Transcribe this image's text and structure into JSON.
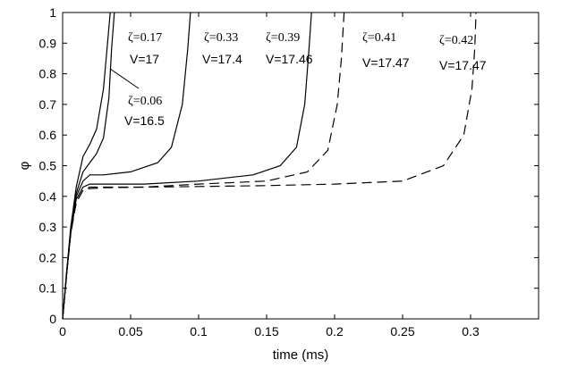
{
  "chart_data": {
    "type": "line",
    "title": "",
    "xlabel": "time (ms)",
    "ylabel": "φ",
    "xlim": [
      0,
      0.35
    ],
    "ylim": [
      0,
      1
    ],
    "xticks": [
      0,
      0.05,
      0.1,
      0.15,
      0.2,
      0.25,
      0.3
    ],
    "xtick_labels": [
      "0",
      "0.05",
      "0.1",
      "0.15",
      "0.2",
      "0.25",
      "0.3"
    ],
    "yticks": [
      0,
      0.1,
      0.2,
      0.3,
      0.4,
      0.5,
      0.6,
      0.7,
      0.8,
      0.9,
      1
    ],
    "ytick_labels": [
      "0",
      "0.1",
      "0.2",
      "0.3",
      "0.4",
      "0.5",
      "0.6",
      "0.7",
      "0.8",
      "0.9",
      "1"
    ],
    "grid": false,
    "legend": "none",
    "series": [
      {
        "style": "solid",
        "x": [
          0,
          0.003,
          0.006,
          0.01,
          0.015,
          0.02,
          0.025,
          0.03,
          0.033,
          0.035
        ],
        "y": [
          0,
          0.16,
          0.3,
          0.43,
          0.53,
          0.57,
          0.62,
          0.75,
          0.9,
          1.0
        ]
      },
      {
        "style": "solid",
        "x": [
          0,
          0.003,
          0.006,
          0.01,
          0.015,
          0.02,
          0.025,
          0.03,
          0.034,
          0.036,
          0.038
        ],
        "y": [
          0,
          0.15,
          0.29,
          0.41,
          0.48,
          0.51,
          0.54,
          0.59,
          0.72,
          0.88,
          1.0
        ]
      },
      {
        "style": "solid",
        "x": [
          0,
          0.003,
          0.006,
          0.01,
          0.015,
          0.02,
          0.03,
          0.05,
          0.07,
          0.08,
          0.088,
          0.092,
          0.094
        ],
        "y": [
          0,
          0.15,
          0.29,
          0.4,
          0.45,
          0.47,
          0.47,
          0.48,
          0.51,
          0.56,
          0.7,
          0.88,
          1.0
        ]
      },
      {
        "style": "solid",
        "x": [
          0,
          0.003,
          0.006,
          0.01,
          0.015,
          0.02,
          0.03,
          0.06,
          0.1,
          0.14,
          0.16,
          0.172,
          0.178,
          0.181,
          0.183
        ],
        "y": [
          0,
          0.15,
          0.28,
          0.39,
          0.43,
          0.44,
          0.44,
          0.44,
          0.45,
          0.47,
          0.5,
          0.56,
          0.7,
          0.87,
          1.0
        ]
      },
      {
        "style": "dashed",
        "x": [
          0,
          0.003,
          0.006,
          0.01,
          0.015,
          0.02,
          0.03,
          0.06,
          0.1,
          0.15,
          0.18,
          0.195,
          0.202,
          0.205,
          0.207
        ],
        "y": [
          0,
          0.15,
          0.28,
          0.38,
          0.42,
          0.43,
          0.43,
          0.43,
          0.44,
          0.45,
          0.48,
          0.55,
          0.7,
          0.85,
          1.0
        ]
      },
      {
        "style": "dashed",
        "x": [
          0,
          0.003,
          0.006,
          0.01,
          0.015,
          0.02,
          0.03,
          0.06,
          0.1,
          0.15,
          0.2,
          0.25,
          0.28,
          0.295,
          0.301,
          0.303,
          0.304
        ],
        "y": [
          0,
          0.15,
          0.28,
          0.38,
          0.42,
          0.425,
          0.428,
          0.43,
          0.432,
          0.435,
          0.44,
          0.45,
          0.5,
          0.6,
          0.75,
          0.88,
          1.0
        ]
      }
    ],
    "annotations": [
      {
        "zeta": "ζ=0.06",
        "v": "V=16.5"
      },
      {
        "zeta": "ζ=0.17",
        "v": "V=17"
      },
      {
        "zeta": "ζ=0.33",
        "v": "V=17.4"
      },
      {
        "zeta": "ζ=0.39",
        "v": "V=17.46"
      },
      {
        "zeta": "ζ=0.41",
        "v": "V=17.47"
      },
      {
        "zeta": "ζ=0.42",
        "v": "V=17.47"
      }
    ]
  }
}
